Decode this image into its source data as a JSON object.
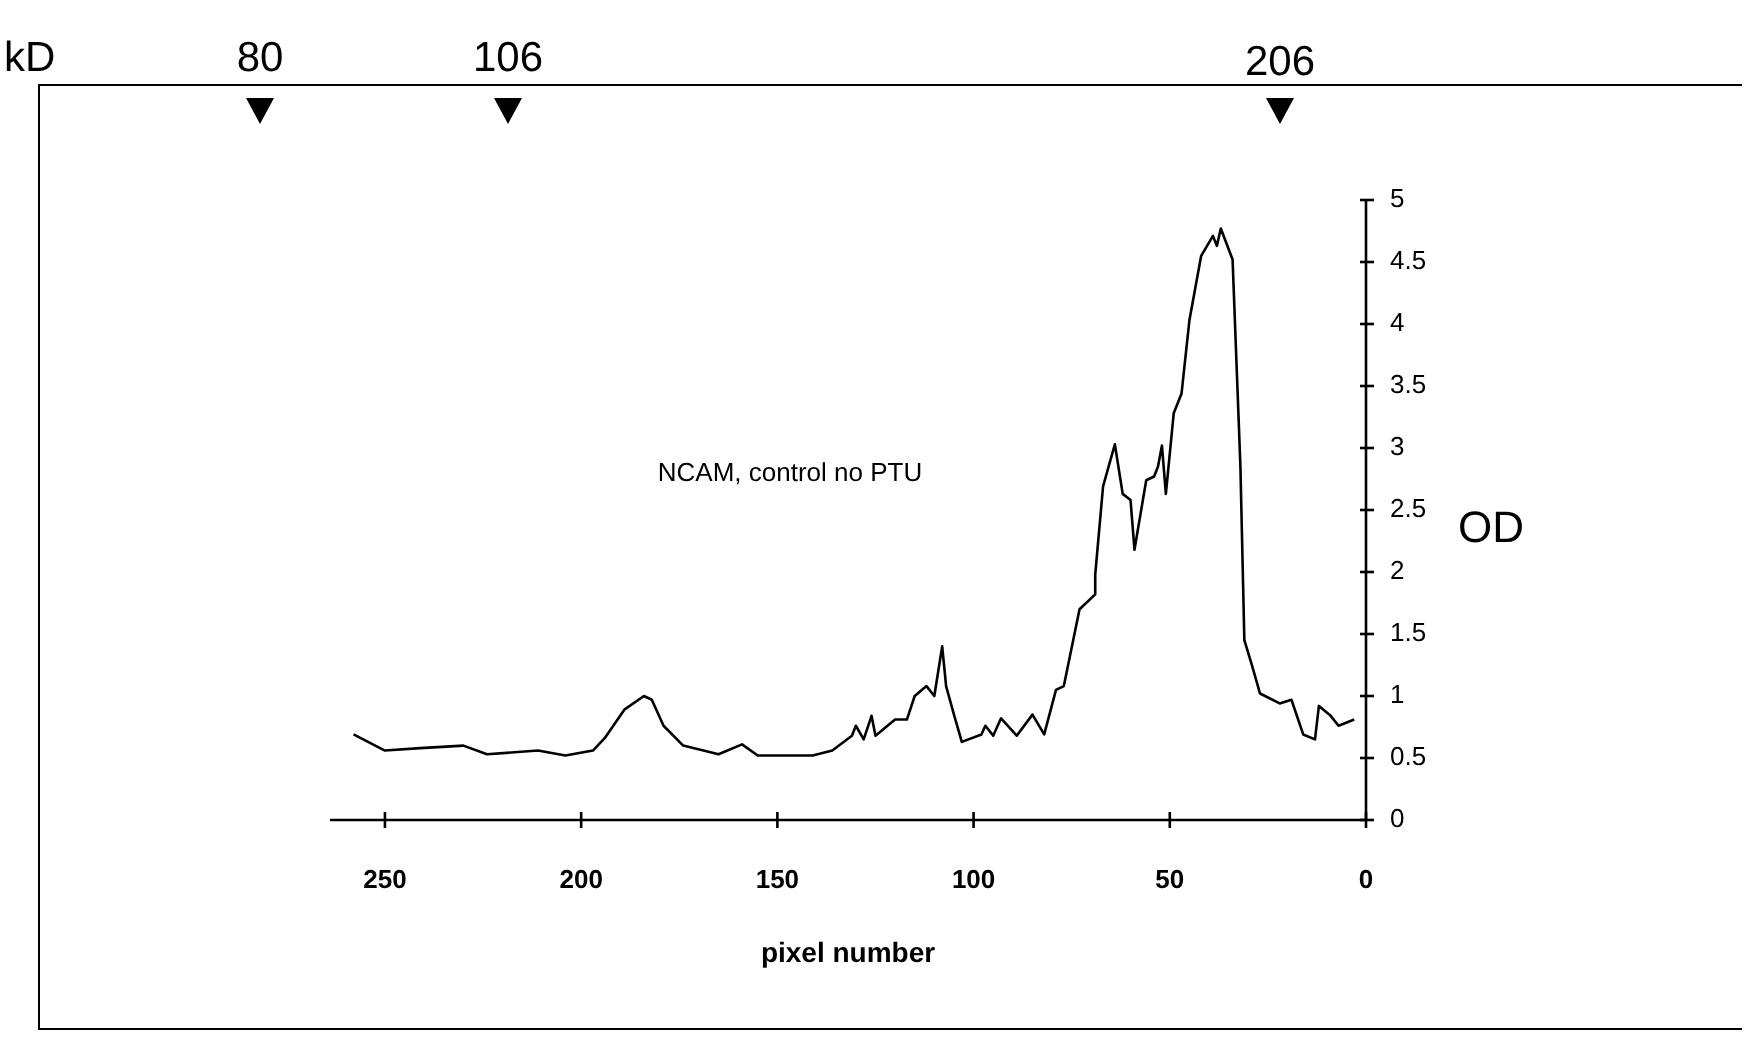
{
  "chart_data": {
    "type": "line",
    "xlabel": "pixel number",
    "ylabel": "OD",
    "annotations": [
      "NCAM, control no PTU",
      "kD",
      "80",
      "106",
      "206"
    ],
    "x": [
      258,
      250,
      241,
      230,
      224,
      211,
      204,
      197,
      194,
      189,
      184,
      182,
      179,
      174,
      165,
      159,
      155,
      141,
      136,
      131,
      130,
      128,
      126,
      125,
      120,
      117,
      115,
      112,
      110,
      108,
      107,
      105,
      103,
      98,
      97,
      95,
      93,
      89,
      85,
      82,
      79,
      77,
      73,
      69,
      69,
      67,
      64,
      62,
      60,
      59,
      56,
      54,
      53,
      52,
      51,
      49,
      47,
      45,
      42,
      39,
      38,
      37,
      34,
      32,
      31,
      29,
      27,
      22,
      19,
      16,
      13,
      12,
      9,
      7,
      3
    ],
    "series": [
      {
        "color": "#000000",
        "values": [
          0.69,
          0.56,
          0.58,
          0.6,
          0.53,
          0.56,
          0.52,
          0.56,
          0.66,
          0.89,
          1.0,
          0.97,
          0.76,
          0.6,
          0.53,
          0.61,
          0.52,
          0.52,
          0.56,
          0.68,
          0.76,
          0.65,
          0.84,
          0.68,
          0.81,
          0.81,
          1.0,
          1.08,
          1.0,
          1.4,
          1.08,
          0.85,
          0.63,
          0.69,
          0.76,
          0.68,
          0.82,
          0.68,
          0.85,
          0.69,
          1.05,
          1.08,
          1.7,
          1.82,
          1.98,
          2.69,
          3.03,
          2.63,
          2.58,
          2.18,
          2.74,
          2.77,
          2.85,
          3.02,
          2.63,
          3.28,
          3.44,
          4.03,
          4.55,
          4.71,
          4.63,
          4.77,
          4.52,
          2.85,
          1.45,
          1.24,
          1.02,
          0.94,
          0.97,
          0.69,
          0.65,
          0.92,
          0.84,
          0.76,
          0.81
        ]
      }
    ],
    "marker": "none",
    "line_style": "solid",
    "xlim": [
      264,
      0
    ],
    "xticks": [
      250,
      200,
      150,
      100,
      50,
      0
    ],
    "ylim": [
      0,
      5
    ],
    "yticks": [
      0,
      0.5,
      1,
      1.5,
      2,
      2.5,
      3,
      3.5,
      4,
      4.5,
      5
    ]
  }
}
